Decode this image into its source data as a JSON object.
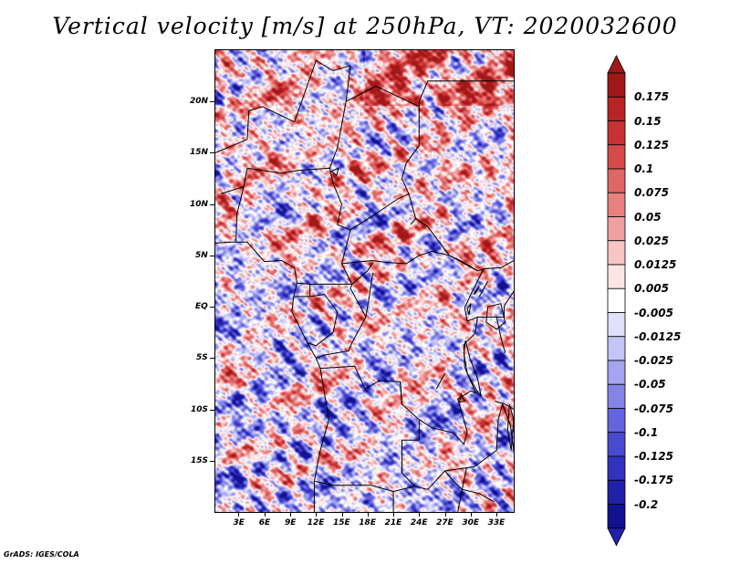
{
  "title": "Vertical velocity [m/s] at 250hPa, VT: 2020032600",
  "footer": "GrADS: IGES/COLA",
  "map": {
    "x_tick_labels": [
      "3E",
      "6E",
      "9E",
      "12E",
      "15E",
      "18E",
      "21E",
      "24E",
      "27E",
      "30E",
      "33E"
    ],
    "x_tick_values": [
      3,
      6,
      9,
      12,
      15,
      18,
      21,
      24,
      27,
      30,
      33
    ],
    "y_tick_labels": [
      "20N",
      "15N",
      "10N",
      "5N",
      "EQ",
      "5S",
      "10S",
      "15S"
    ],
    "y_tick_values": [
      20,
      15,
      10,
      5,
      0,
      -5,
      -10,
      -15
    ],
    "lon_range": [
      0.3,
      35.0
    ],
    "lat_range": [
      -20.0,
      25.0
    ]
  },
  "colorbar": {
    "labels": [
      "0.175",
      "0.15",
      "0.125",
      "0.1",
      "0.075",
      "0.05",
      "0.025",
      "0.0125",
      "0.005",
      "-0.005",
      "-0.0125",
      "-0.025",
      "-0.05",
      "-0.075",
      "-0.1",
      "-0.125",
      "-0.175",
      "-0.2"
    ],
    "colors": [
      "#a01818",
      "#b82424",
      "#c83232",
      "#d84a4a",
      "#e06666",
      "#e88080",
      "#f0a0a0",
      "#f8c4c4",
      "#fce4e4",
      "#ffffff",
      "#e0e0fc",
      "#c4c4f8",
      "#a4a4f0",
      "#8484e8",
      "#6464dc",
      "#4a4ad0",
      "#3232c0",
      "#2020a8",
      "#121290"
    ],
    "top_arrow_color": "#a01818",
    "bottom_arrow_color": "#2020a8"
  }
}
